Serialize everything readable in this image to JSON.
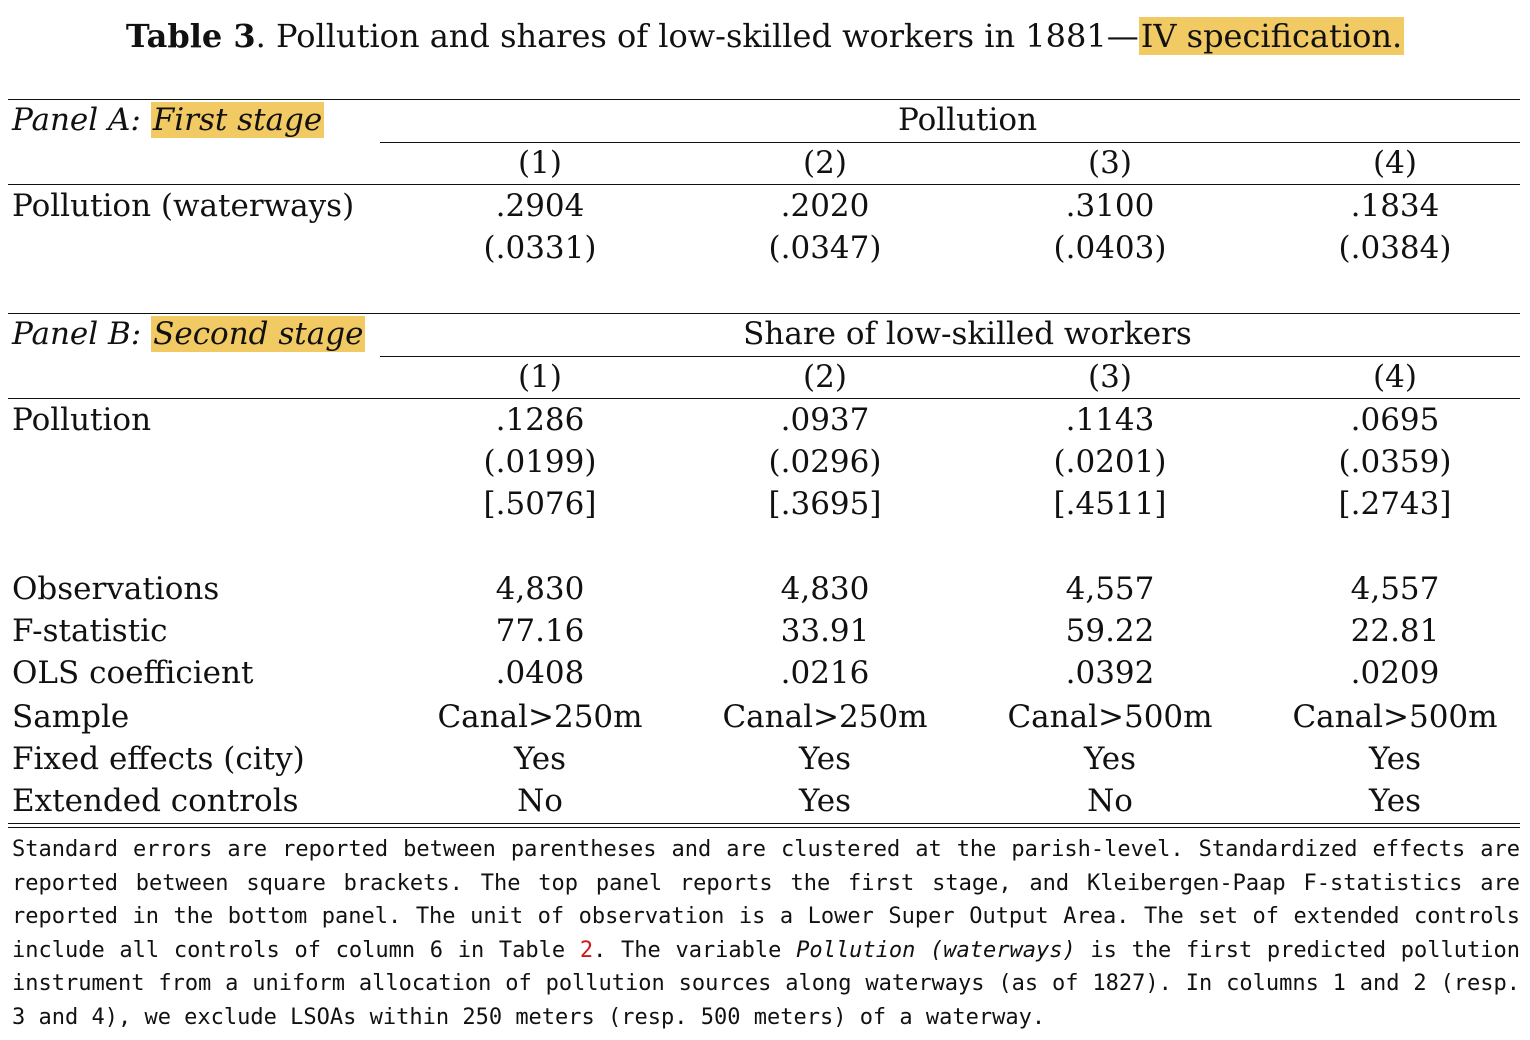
{
  "caption": {
    "label": "Table 3",
    "text_plain": ". Pollution and shares of low-skilled workers in 1881—",
    "text_highlight": "IV specification."
  },
  "panel_a": {
    "label_prefix": "Panel A: ",
    "label_highlight": "First stage",
    "dependent_var": "Pollution",
    "columns": [
      "(1)",
      "(2)",
      "(3)",
      "(4)"
    ],
    "rows": [
      {
        "label": "Pollution (waterways)",
        "values": [
          ".2904",
          ".2020",
          ".3100",
          ".1834"
        ]
      },
      {
        "label": "",
        "values": [
          "(.0331)",
          "(.0347)",
          "(.0403)",
          "(.0384)"
        ]
      }
    ]
  },
  "panel_b": {
    "label_prefix": "Panel B: ",
    "label_highlight": "Second stage",
    "dependent_var": "Share of low-skilled workers",
    "columns": [
      "(1)",
      "(2)",
      "(3)",
      "(4)"
    ],
    "rows": [
      {
        "label": "Pollution",
        "values": [
          ".1286",
          ".0937",
          ".1143",
          ".0695"
        ]
      },
      {
        "label": "",
        "values": [
          "(.0199)",
          "(.0296)",
          "(.0201)",
          "(.0359)"
        ]
      },
      {
        "label": "",
        "values": [
          "[.5076]",
          "[.3695]",
          "[.4511]",
          "[.2743]"
        ]
      }
    ]
  },
  "summary_rows": [
    {
      "label": "Observations",
      "values": [
        "4,830",
        "4,830",
        "4,557",
        "4,557"
      ]
    },
    {
      "label": "F-statistic",
      "values": [
        "77.16",
        "33.91",
        "59.22",
        "22.81"
      ]
    },
    {
      "label": "OLS coefficient",
      "values": [
        ".0408",
        ".0216",
        ".0392",
        ".0209"
      ]
    },
    {
      "label": "Sample",
      "values": [
        "Canal>250m",
        "Canal>250m",
        "Canal>500m",
        "Canal>500m"
      ]
    },
    {
      "label": "Fixed effects (city)",
      "values": [
        "Yes",
        "Yes",
        "Yes",
        "Yes"
      ]
    },
    {
      "label": "Extended controls",
      "values": [
        "No",
        "Yes",
        "No",
        "Yes"
      ]
    }
  ],
  "notes": {
    "part1": "Standard errors are reported between parentheses and are clustered at the parish-level. Standardized effects are reported between square brackets. The top panel reports the first stage, and Kleibergen-Paap F-statistics are reported in the bottom panel. The unit of observation is a Lower Super Output Area. The set of extended controls include all controls of column 6 in Table ",
    "table_ref": "2",
    "part2": ". The variable ",
    "italic_var": "Pollution (waterways)",
    "part3": " is the first predicted pollution instrument from a uniform allocation of pollution sources along waterways (as of 1827). In columns 1 and 2 (resp. 3 and 4), we exclude LSOAs within 250 meters (resp. 500 meters) of a waterway."
  },
  "colors": {
    "highlight": "#f2ca63",
    "reference_link": "#cc1a1a"
  }
}
